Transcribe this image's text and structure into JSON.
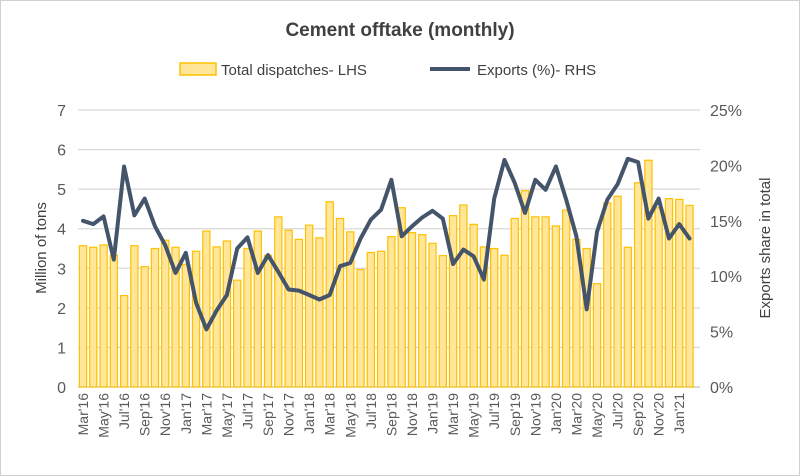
{
  "chart_data": {
    "type": "bar+line",
    "title": "Cement offtake (monthly)",
    "ylabel": "Million of tons",
    "y2label": "Exports share in total",
    "ylim": [
      0,
      7
    ],
    "y2lim": [
      0,
      25
    ],
    "yticks": [
      "0",
      "1",
      "2",
      "3",
      "4",
      "5",
      "6",
      "7"
    ],
    "y2ticks": [
      "0%",
      "5%",
      "10%",
      "15%",
      "20%",
      "25%"
    ],
    "grid": true,
    "legend_position": "top",
    "x": [
      "Mar'16",
      "Apr'16",
      "May'16",
      "Jun'16",
      "Jul'16",
      "Aug'16",
      "Sep'16",
      "Oct'16",
      "Nov'16",
      "Dec'16",
      "Jan'17",
      "Feb'17",
      "Mar'17",
      "Apr'17",
      "May'17",
      "Jun'17",
      "Jul'17",
      "Aug'17",
      "Sep'17",
      "Oct'17",
      "Nov'17",
      "Dec'17",
      "Jan'18",
      "Feb'18",
      "Mar'18",
      "Apr'18",
      "May'18",
      "Jun'18",
      "Jul'18",
      "Aug'18",
      "Sep'18",
      "Oct'18",
      "Nov'18",
      "Dec'18",
      "Jan'19",
      "Feb'19",
      "Mar'19",
      "Apr'19",
      "May'19",
      "Jun'19",
      "Jul'19",
      "Aug'19",
      "Sep'19",
      "Oct'19",
      "Nov'19",
      "Dec'19",
      "Jan'20",
      "Feb'20",
      "Mar'20",
      "Apr'20",
      "May'20",
      "Jun'20",
      "Jul'20",
      "Aug'20",
      "Sep'20",
      "Oct'20",
      "Nov'20",
      "Dec'20",
      "Jan'21",
      "Feb'21"
    ],
    "xtick_labels": [
      "Mar'16",
      "May'16",
      "Jul'16",
      "Sep'16",
      "Nov'16",
      "Jan'17",
      "Mar'17",
      "May'17",
      "Jul'17",
      "Sep'17",
      "Nov'17",
      "Jan'18",
      "Mar'18",
      "May'18",
      "Jul'18",
      "Sep'18",
      "Nov'18",
      "Jan'19",
      "Mar'19",
      "May'19",
      "Jul'19",
      "Sep'19",
      "Nov'19",
      "Jan'20",
      "Mar'20",
      "May'20",
      "Jul'20",
      "Sep'20",
      "Nov'20",
      "Jan'21"
    ],
    "series": [
      {
        "name": "Total dispatches- LHS",
        "type": "bar",
        "axis": "left",
        "color": "#FFE699",
        "edge_color": "#FFC000",
        "values": [
          3.57,
          3.53,
          3.59,
          3.33,
          2.31,
          3.57,
          3.04,
          3.5,
          3.71,
          3.53,
          3.1,
          3.43,
          3.94,
          3.54,
          3.69,
          2.7,
          3.5,
          3.94,
          3.33,
          4.3,
          3.96,
          3.73,
          4.09,
          3.77,
          4.68,
          4.26,
          3.92,
          2.97,
          3.4,
          3.43,
          3.8,
          4.53,
          3.9,
          3.85,
          3.63,
          3.32,
          4.33,
          4.6,
          4.11,
          3.54,
          3.5,
          3.33,
          4.26,
          4.96,
          4.3,
          4.3,
          4.07,
          4.47,
          3.73,
          3.5,
          2.61,
          4.65,
          4.82,
          3.53,
          5.16,
          5.73,
          4.53,
          4.76,
          4.74,
          4.59
        ]
      },
      {
        "name": "Exports (%)- RHS",
        "type": "line",
        "axis": "right",
        "color": "#44546A",
        "values": [
          15.0,
          14.7,
          15.4,
          11.5,
          19.9,
          15.5,
          17.0,
          14.5,
          12.8,
          10.3,
          12.1,
          7.6,
          5.2,
          6.9,
          8.3,
          12.5,
          13.5,
          10.3,
          11.9,
          10.4,
          8.8,
          8.7,
          8.3,
          7.9,
          8.3,
          10.9,
          11.2,
          13.4,
          15.1,
          16.0,
          18.7,
          13.6,
          14.5,
          15.3,
          15.9,
          15.2,
          11.1,
          12.4,
          11.8,
          9.7,
          17.0,
          20.5,
          18.4,
          15.7,
          18.7,
          17.8,
          19.9,
          16.9,
          13.6,
          7.0,
          14.0,
          16.9,
          18.3,
          20.6,
          20.3,
          15.2,
          17.0,
          13.4,
          14.7,
          13.4
        ]
      }
    ]
  }
}
